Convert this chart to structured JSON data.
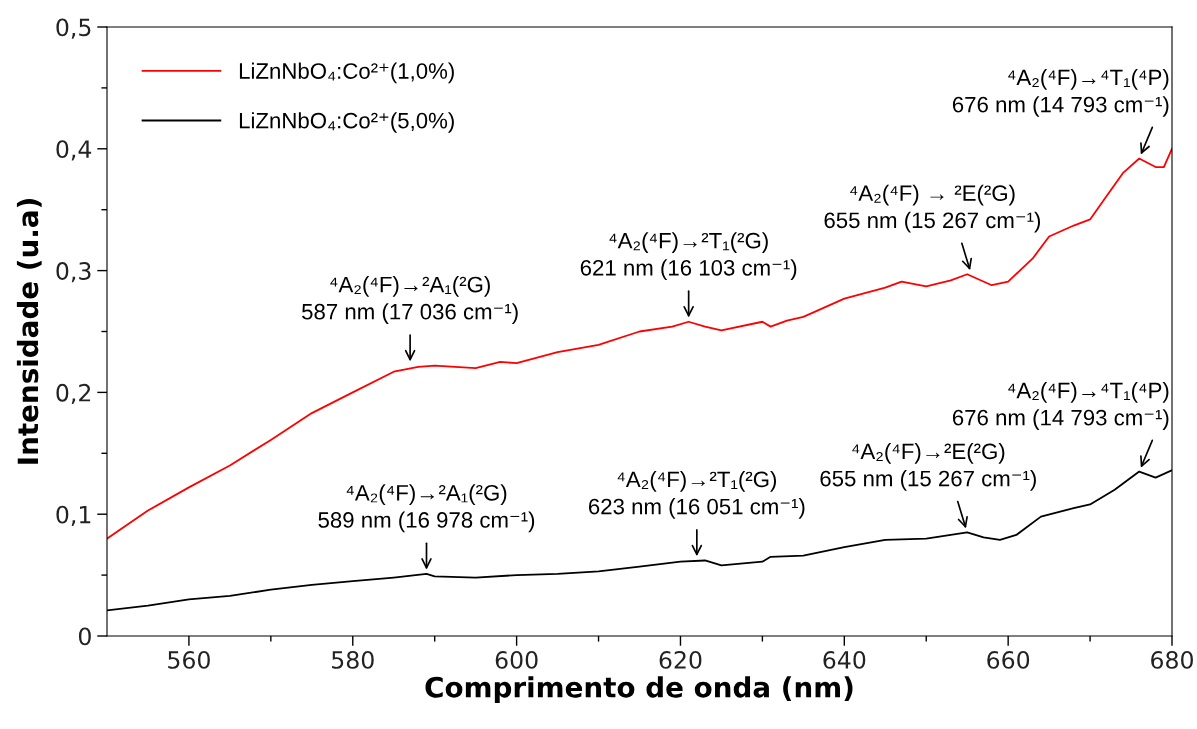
{
  "chart_data": {
    "type": "line",
    "xlabel": "Comprimento de onda (nm)",
    "ylabel": "Intensidade (u.a)",
    "xlim": [
      550,
      680
    ],
    "ylim": [
      0,
      0.5
    ],
    "xticks": [
      560,
      {
        "value": 570,
        "label": null
      },
      580,
      {
        "value": 590,
        "label": null
      },
      600,
      {
        "value": 610,
        "label": null
      },
      620,
      {
        "value": 630,
        "label": null
      },
      640,
      {
        "value": 650,
        "label": null
      },
      660,
      {
        "value": 670,
        "label": null
      },
      680
    ],
    "yticks": [
      0,
      {
        "value": 0.05,
        "label": null
      },
      {
        "value": 0.1,
        "label": "0,1"
      },
      {
        "value": 0.15,
        "label": null
      },
      {
        "value": 0.2,
        "label": "0,2"
      },
      {
        "value": 0.25,
        "label": null
      },
      {
        "value": 0.3,
        "label": "0,3"
      },
      {
        "value": 0.35,
        "label": null
      },
      {
        "value": 0.4,
        "label": "0,4"
      },
      {
        "value": 0.45,
        "label": null
      },
      {
        "value": 0.5,
        "label": "0,5"
      }
    ],
    "grid": false,
    "legend": "top left",
    "marker": "none",
    "line_style": "solid",
    "series": [
      {
        "name": "LiZnNbO₄:Co²⁺(1,0%)",
        "color": "#ff0000",
        "x": [
          550,
          555,
          560,
          565,
          570,
          575,
          580,
          585,
          588,
          590,
          595,
          598,
          600,
          605,
          610,
          615,
          619,
          621,
          623,
          625,
          630,
          631,
          633,
          635,
          640,
          645,
          647,
          650,
          653,
          655,
          658,
          660,
          663,
          665,
          668,
          670,
          672,
          674,
          676,
          678,
          679,
          680
        ],
        "values": [
          0.08,
          0.103,
          0.122,
          0.14,
          0.161,
          0.183,
          0.2,
          0.217,
          0.221,
          0.222,
          0.22,
          0.225,
          0.224,
          0.233,
          0.239,
          0.25,
          0.254,
          0.258,
          0.254,
          0.251,
          0.258,
          0.254,
          0.259,
          0.262,
          0.277,
          0.286,
          0.291,
          0.287,
          0.292,
          0.297,
          0.288,
          0.291,
          0.31,
          0.328,
          0.337,
          0.342,
          0.361,
          0.38,
          0.392,
          0.385,
          0.385,
          0.4
        ]
      },
      {
        "name": "LiZnNbO₄:Co²⁺(5,0%)",
        "color": "#000000",
        "x": [
          550,
          555,
          560,
          565,
          570,
          575,
          580,
          585,
          589,
          590,
          595,
          600,
          605,
          610,
          615,
          620,
          623,
          625,
          630,
          631,
          635,
          640,
          645,
          650,
          653,
          655,
          657,
          659,
          661,
          664,
          668,
          670,
          673,
          676,
          678,
          680
        ],
        "values": [
          0.021,
          0.025,
          0.03,
          0.033,
          0.038,
          0.042,
          0.045,
          0.048,
          0.051,
          0.049,
          0.048,
          0.05,
          0.051,
          0.053,
          0.057,
          0.061,
          0.062,
          0.058,
          0.061,
          0.065,
          0.066,
          0.073,
          0.079,
          0.08,
          0.083,
          0.085,
          0.081,
          0.079,
          0.083,
          0.098,
          0.105,
          0.108,
          0.12,
          0.135,
          0.13,
          0.136
        ]
      }
    ],
    "annotations": [
      {
        "text": "⁴A₂(⁴F)→²A₁(²G)\n587 nm (17 036 cm⁻¹)",
        "x": 587,
        "y": 0.222
      },
      {
        "text": "⁴A₂(⁴F)→²T₁(²G)\n621 nm (16 103 cm⁻¹)",
        "x": 621,
        "y": 0.258
      },
      {
        "text": "⁴A₂(⁴F) → ²E(²G)\n655 nm (15 267 cm⁻¹)",
        "x": 655.5,
        "y": 0.297
      },
      {
        "text": "⁴A₂(⁴F)→⁴T₁(⁴P)\n676 nm (14 793 cm⁻¹)",
        "x": 676,
        "y": 0.392
      },
      {
        "text": "⁴A₂(⁴F)→²A₁(²G)\n589 nm (16 978 cm⁻¹)",
        "x": 589,
        "y": 0.051
      },
      {
        "text": "⁴A₂(⁴F)→²T₁(²G)\n623 nm (16 051 cm⁻¹)",
        "x": 622,
        "y": 0.062
      },
      {
        "text": "⁴A₂(⁴F)→²E(²G)\n655 nm (15 267 cm⁻¹)",
        "x": 655,
        "y": 0.085
      },
      {
        "text": "⁴A₂(⁴F)→⁴T₁(⁴P)\n676 nm (14 793 cm⁻¹)",
        "x": 676,
        "y": 0.135
      }
    ]
  }
}
